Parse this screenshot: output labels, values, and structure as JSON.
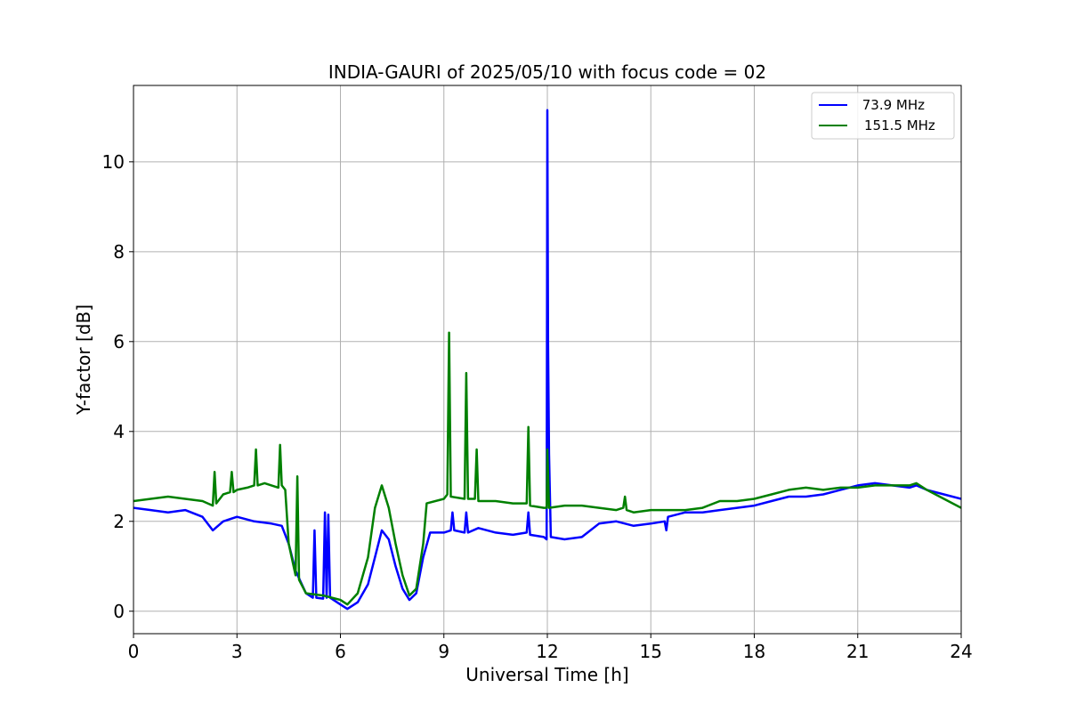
{
  "chart_data": {
    "type": "line",
    "title": "INDIA-GAURI of 2025/05/10 with focus code = 02",
    "xlabel": "Universal Time [h]",
    "ylabel": "Y-factor [dB]",
    "xlim": [
      0,
      24
    ],
    "ylim": [
      -0.5,
      11.7
    ],
    "xticks": [
      0,
      3,
      6,
      9,
      12,
      15,
      18,
      21,
      24
    ],
    "yticks": [
      0,
      2,
      4,
      6,
      8,
      10
    ],
    "grid": true,
    "legend_position": "top-right",
    "series": [
      {
        "name": " 73.9 MHz",
        "color": "#0000ff",
        "x": [
          0,
          0.5,
          1,
          1.5,
          2,
          2.3,
          2.6,
          3,
          3.5,
          4,
          4.3,
          4.5,
          4.7,
          5,
          5.2,
          5.25,
          5.3,
          5.5,
          5.55,
          5.6,
          5.65,
          5.7,
          6,
          6.2,
          6.5,
          6.8,
          7,
          7.2,
          7.4,
          7.6,
          7.8,
          8,
          8.2,
          8.4,
          8.6,
          9,
          9.2,
          9.25,
          9.3,
          9.6,
          9.65,
          9.7,
          10,
          10.5,
          11,
          11.4,
          11.45,
          11.5,
          11.9,
          11.98,
          12,
          12.02,
          12.05,
          12.1,
          12.5,
          13,
          13.5,
          14,
          14.5,
          15,
          15.4,
          15.45,
          15.5,
          16,
          16.5,
          17,
          17.5,
          18,
          18.5,
          19,
          19.5,
          20,
          20.5,
          21,
          21.5,
          22,
          22.5,
          22.7,
          23,
          23.5,
          24
        ],
        "y": [
          2.3,
          2.25,
          2.2,
          2.25,
          2.1,
          1.8,
          2.0,
          2.1,
          2.0,
          1.95,
          1.9,
          1.5,
          0.9,
          0.4,
          0.3,
          1.8,
          0.3,
          0.28,
          2.2,
          0.3,
          2.15,
          0.3,
          0.15,
          0.05,
          0.2,
          0.6,
          1.2,
          1.8,
          1.6,
          1.0,
          0.5,
          0.25,
          0.4,
          1.2,
          1.75,
          1.75,
          1.8,
          2.2,
          1.8,
          1.75,
          2.2,
          1.75,
          1.85,
          1.75,
          1.7,
          1.75,
          2.2,
          1.7,
          1.65,
          1.6,
          11.15,
          6.0,
          3.5,
          1.65,
          1.6,
          1.65,
          1.95,
          2.0,
          1.9,
          1.95,
          2.0,
          1.8,
          2.1,
          2.2,
          2.2,
          2.25,
          2.3,
          2.35,
          2.45,
          2.55,
          2.55,
          2.6,
          2.7,
          2.8,
          2.85,
          2.8,
          2.75,
          2.8,
          2.7,
          2.6,
          2.5
        ]
      },
      {
        "name": "151.5 MHz",
        "color": "#008000",
        "x": [
          0,
          0.5,
          1,
          1.5,
          2,
          2.3,
          2.35,
          2.4,
          2.6,
          2.8,
          2.85,
          2.9,
          3,
          3.3,
          3.5,
          3.55,
          3.6,
          3.8,
          4,
          4.2,
          4.25,
          4.3,
          4.4,
          4.5,
          4.7,
          4.75,
          4.8,
          5,
          5.5,
          6,
          6.2,
          6.5,
          6.8,
          7,
          7.2,
          7.4,
          7.6,
          7.8,
          8,
          8.2,
          8.4,
          8.5,
          9,
          9.1,
          9.15,
          9.2,
          9.6,
          9.65,
          9.7,
          9.9,
          9.95,
          10,
          10.5,
          11,
          11.4,
          11.45,
          11.5,
          11.9,
          11.98,
          12,
          12.05,
          12.5,
          13,
          13.5,
          14,
          14.2,
          14.25,
          14.3,
          14.5,
          15,
          15.5,
          16,
          16.5,
          17,
          17.5,
          18,
          18.5,
          19,
          19.5,
          20,
          20.5,
          21,
          21.5,
          22,
          22.5,
          22.7,
          23,
          23.5,
          24
        ],
        "y": [
          2.45,
          2.5,
          2.55,
          2.5,
          2.45,
          2.35,
          3.1,
          2.4,
          2.6,
          2.65,
          3.1,
          2.65,
          2.7,
          2.75,
          2.8,
          3.6,
          2.8,
          2.85,
          2.8,
          2.75,
          3.7,
          2.8,
          2.7,
          1.5,
          0.8,
          3.0,
          0.7,
          0.4,
          0.35,
          0.25,
          0.15,
          0.4,
          1.2,
          2.3,
          2.8,
          2.3,
          1.5,
          0.8,
          0.35,
          0.5,
          1.5,
          2.4,
          2.5,
          2.6,
          6.2,
          2.55,
          2.5,
          5.3,
          2.5,
          2.5,
          3.6,
          2.45,
          2.45,
          2.4,
          2.4,
          4.1,
          2.35,
          2.3,
          2.3,
          3.6,
          2.3,
          2.35,
          2.35,
          2.3,
          2.25,
          2.3,
          2.55,
          2.25,
          2.2,
          2.25,
          2.25,
          2.25,
          2.3,
          2.45,
          2.45,
          2.5,
          2.6,
          2.7,
          2.75,
          2.7,
          2.75,
          2.75,
          2.8,
          2.8,
          2.8,
          2.85,
          2.7,
          2.5,
          2.3
        ]
      }
    ]
  }
}
